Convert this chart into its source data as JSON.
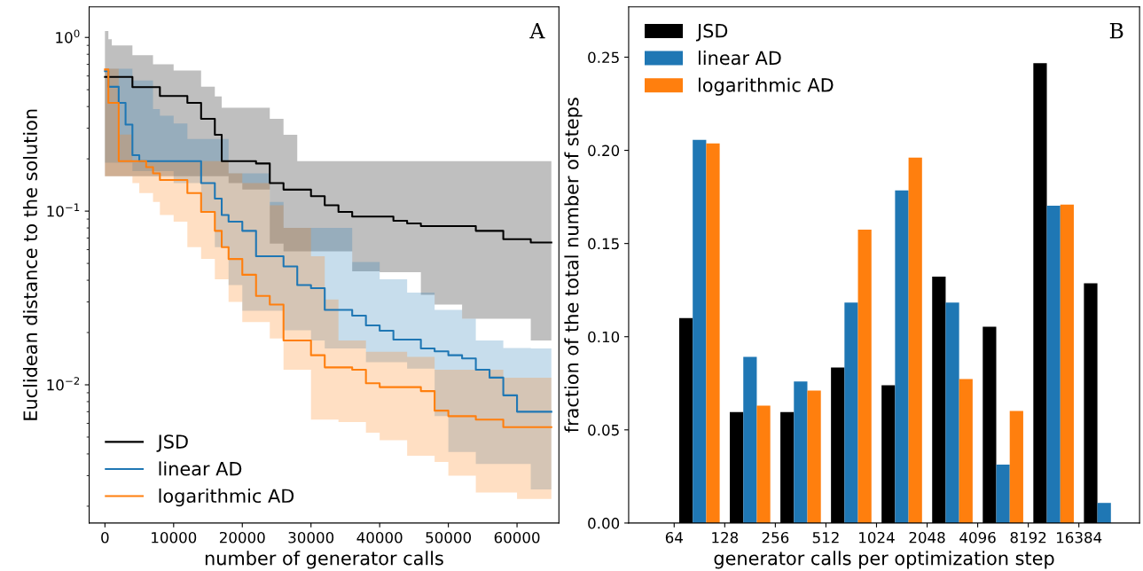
{
  "chart_data": [
    {
      "type": "step",
      "xlabel": "number of generator calls",
      "ylabel": "Euclidean distance to the solution",
      "annotations": [
        "A"
      ],
      "log": true,
      "legend": "bottom left",
      "grid": false,
      "x": [
        0,
        500,
        1000,
        2000,
        3000,
        4000,
        5000,
        6000,
        7000,
        8000,
        10000,
        12000,
        14000,
        16000,
        17000,
        18000,
        20000,
        22000,
        24000,
        26000,
        28000,
        30000,
        32000,
        34000,
        36000,
        38000,
        40000,
        42000,
        44000,
        46000,
        48000,
        50000,
        52000,
        54000,
        56000,
        58000,
        60000,
        62000,
        65000
      ],
      "xlim": [
        -2300,
        66100
      ],
      "xticks": [
        0,
        10000,
        20000,
        30000,
        40000,
        50000,
        60000
      ],
      "ylim": [
        0.0016,
        1.5
      ],
      "yticks": [
        {
          "value": 1,
          "label": "10$^{0}$"
        },
        {
          "value": 0.1,
          "label": "10$^{−1}$"
        },
        {
          "value": 0.01,
          "label": "10$^{−2}$"
        }
      ],
      "series": [
        {
          "name": "JSD",
          "color": "#000000",
          "values": [
            0.593,
            0.593,
            0.593,
            0.593,
            0.593,
            0.518,
            0.518,
            0.518,
            0.518,
            0.46,
            0.46,
            0.42,
            0.34,
            0.275,
            0.194,
            0.194,
            0.194,
            0.188,
            0.145,
            0.133,
            0.133,
            0.122,
            0.108,
            0.099,
            0.093,
            0.093,
            0.093,
            0.088,
            0.085,
            0.082,
            0.082,
            0.082,
            0.082,
            0.077,
            0.077,
            0.069,
            0.069,
            0.066,
            0.066
          ],
          "lower": [
            0.159,
            0.159,
            0.159,
            0.159,
            0.159,
            0.159,
            0.159,
            0.159,
            0.159,
            0.159,
            0.159,
            0.159,
            0.159,
            0.159,
            0.159,
            0.145,
            0.133,
            0.133,
            0.065,
            0.0586,
            0.0586,
            0.0586,
            0.0586,
            0.0586,
            0.045,
            0.045,
            0.0445,
            0.0445,
            0.0445,
            0.033,
            0.029,
            0.029,
            0.024,
            0.024,
            0.024,
            0.024,
            0.024,
            0.018,
            0.0162
          ],
          "upper": [
            1.09,
            0.976,
            0.9,
            0.9,
            0.9,
            0.79,
            0.79,
            0.79,
            0.7,
            0.7,
            0.645,
            0.645,
            0.52,
            0.457,
            0.394,
            0.394,
            0.394,
            0.394,
            0.34,
            0.275,
            0.194,
            0.194,
            0.194,
            0.194,
            0.194,
            0.194,
            0.194,
            0.194,
            0.194,
            0.194,
            0.194,
            0.194,
            0.194,
            0.194,
            0.194,
            0.194,
            0.194,
            0.194,
            0.194
          ]
        },
        {
          "name": "linear AD",
          "color": "#1f77b4",
          "values": [
            0.64,
            0.52,
            0.52,
            0.42,
            0.315,
            0.21,
            0.194,
            0.194,
            0.194,
            0.194,
            0.194,
            0.194,
            0.145,
            0.118,
            0.095,
            0.087,
            0.077,
            0.055,
            0.055,
            0.048,
            0.0375,
            0.036,
            0.027,
            0.027,
            0.025,
            0.022,
            0.0205,
            0.0182,
            0.0182,
            0.0162,
            0.0156,
            0.0148,
            0.0142,
            0.0122,
            0.011,
            0.0087,
            0.007,
            0.007,
            0.007
          ],
          "lower": [
            0.19,
            0.19,
            0.19,
            0.19,
            0.19,
            0.17,
            0.17,
            0.17,
            0.17,
            0.17,
            0.145,
            0.145,
            0.099,
            0.062,
            0.062,
            0.0375,
            0.0267,
            0.0267,
            0.0267,
            0.0206,
            0.0206,
            0.018,
            0.0162,
            0.0162,
            0.0162,
            0.0135,
            0.0135,
            0.0135,
            0.0124,
            0.0124,
            0.0066,
            0.0041,
            0.0041,
            0.0035,
            0.0035,
            0.0035,
            0.0035,
            0.0025,
            0.0025
          ],
          "upper": [
            0.66,
            0.66,
            0.66,
            0.66,
            0.66,
            0.565,
            0.565,
            0.565,
            0.387,
            0.354,
            0.32,
            0.26,
            0.26,
            0.26,
            0.26,
            0.165,
            0.165,
            0.165,
            0.113,
            0.08,
            0.08,
            0.08,
            0.08,
            0.08,
            0.051,
            0.051,
            0.0405,
            0.0405,
            0.034,
            0.034,
            0.027,
            0.027,
            0.024,
            0.018,
            0.018,
            0.0163,
            0.0163,
            0.0162,
            0.0162
          ]
        },
        {
          "name": "logarithmic AD",
          "color": "#ff7f0e",
          "values": [
            0.654,
            0.42,
            0.42,
            0.194,
            0.194,
            0.194,
            0.194,
            0.179,
            0.165,
            0.151,
            0.151,
            0.127,
            0.099,
            0.077,
            0.062,
            0.053,
            0.043,
            0.0325,
            0.029,
            0.018,
            0.018,
            0.0148,
            0.0126,
            0.0126,
            0.0122,
            0.0102,
            0.0097,
            0.0097,
            0.0097,
            0.0092,
            0.0071,
            0.0066,
            0.0066,
            0.0063,
            0.0063,
            0.0057,
            0.0057,
            0.0057,
            0.0057
          ],
          "lower": [
            0.159,
            0.159,
            0.159,
            0.159,
            0.159,
            0.145,
            0.127,
            0.127,
            0.113,
            0.095,
            0.087,
            0.062,
            0.053,
            0.0405,
            0.0405,
            0.03,
            0.023,
            0.023,
            0.0185,
            0.0122,
            0.0122,
            0.0063,
            0.0063,
            0.0061,
            0.0061,
            0.0053,
            0.0048,
            0.0048,
            0.0039,
            0.0039,
            0.0036,
            0.003,
            0.003,
            0.0024,
            0.0024,
            0.0024,
            0.0022,
            0.0022,
            0.0022
          ],
          "upper": [
            0.66,
            0.66,
            0.66,
            0.276,
            0.276,
            0.194,
            0.194,
            0.194,
            0.194,
            0.194,
            0.194,
            0.194,
            0.194,
            0.194,
            0.194,
            0.165,
            0.145,
            0.145,
            0.108,
            0.08,
            0.08,
            0.055,
            0.031,
            0.018,
            0.018,
            0.0155,
            0.0155,
            0.0155,
            0.0145,
            0.0145,
            0.0122,
            0.0122,
            0.0122,
            0.0122,
            0.0122,
            0.011,
            0.011,
            0.011,
            0.011
          ]
        }
      ]
    },
    {
      "type": "bar",
      "xlabel": "generator calls per optimization step",
      "ylabel": "fraction of the total number of steps",
      "annotations": [
        "B"
      ],
      "legend": "top left",
      "grid": false,
      "log": "x",
      "x": [
        90.5,
        181,
        362,
        724,
        1448,
        2896,
        5793,
        11585,
        23170
      ],
      "xlim": [
        34.3,
        37640
      ],
      "xticks": [
        64,
        128,
        256,
        512,
        1024,
        2048,
        4096,
        8192,
        16384
      ],
      "ylim": [
        0,
        0.277
      ],
      "yticks": [
        {
          "value": 0,
          "label": "0.00"
        },
        {
          "value": 0.05,
          "label": "0.05"
        },
        {
          "value": 0.1,
          "label": "0.10"
        },
        {
          "value": 0.15,
          "label": "0.15"
        },
        {
          "value": 0.2,
          "label": "0.20"
        },
        {
          "value": 0.25,
          "label": "0.25"
        }
      ],
      "series": [
        {
          "name": "JSD",
          "color": "#000000",
          "values": [
            0.11,
            0.0596,
            0.0596,
            0.0834,
            0.0739,
            0.1322,
            0.1053,
            0.2468,
            0.1287
          ]
        },
        {
          "name": "linear AD",
          "color": "#1f77b4",
          "values": [
            0.2056,
            0.0892,
            0.076,
            0.1183,
            0.1785,
            0.1183,
            0.0314,
            0.1703,
            0.0108
          ]
        },
        {
          "name": "logarithmic AD",
          "color": "#ff7f0e",
          "values": [
            0.2037,
            0.063,
            0.0711,
            0.1575,
            0.1961,
            0.0773,
            0.0602,
            0.1709,
            0
          ]
        }
      ]
    }
  ]
}
